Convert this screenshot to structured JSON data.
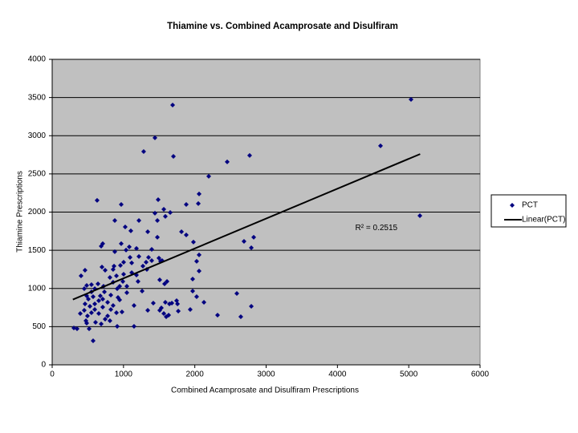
{
  "chart_data": {
    "type": "scatter",
    "title": "Thiamine vs. Combined Acamprosate and Disulfiram",
    "x_label": "Combined Acamprosate and Disulfiram Prescriptions",
    "y_label": "Thiamine Prescriptions",
    "xlim": [
      0,
      6000
    ],
    "ylim": [
      0,
      4000
    ],
    "xticks": [
      0,
      1000,
      2000,
      3000,
      4000,
      5000,
      6000
    ],
    "yticks": [
      0,
      500,
      1000,
      1500,
      2000,
      2500,
      3000,
      3500,
      4000
    ],
    "grid": true,
    "legend": "right",
    "plot_background": "#c0c0c0",
    "series": [
      {
        "name": "PCT",
        "color": "#000080",
        "x": [
          5032,
          4604,
          5156,
          1689,
          1441,
          1283,
          1700,
          2769,
          2454,
          2195,
          2060,
          1486,
          630,
          968,
          1880,
          2049,
          1565,
          1655,
          1441,
          1587,
          1475,
          1216,
          878,
          1024,
          1813,
          1340,
          1880,
          1103,
          1475,
          1981,
          2826,
          2690,
          2792,
          687,
          709,
          968,
          1081,
          1036,
          878,
          1182,
          1396,
          2060,
          1216,
          1092,
          1351,
          1497,
          1396,
          1520,
          1317,
          2026,
          1542,
          1115,
          1002,
          957,
          867,
          698,
          1272,
          2060,
          1328,
          743,
          855,
          1115,
          1002,
          1182,
          901,
          405,
          461,
          810,
          1508,
          1970,
          1610,
          1204,
          991,
          855,
          551,
          642,
          484,
          1047,
          946,
          720,
          912,
          597,
          450,
          1576,
          1261,
          732,
          1970,
          2589,
          551,
          1047,
          822,
          675,
          574,
          484,
          2026,
          923,
          507,
          709,
          946,
          653,
          1745,
          777,
          1587,
          2128,
          461,
          597,
          1644,
          1678,
          855,
          1418,
          1757,
          529,
          1148,
          709,
          1531,
          2792,
          1340,
          1508,
          1768,
          822,
          597,
          450,
          551,
          979,
          901,
          653,
          1936,
          1565,
          1633,
          394,
          495,
          777,
          1599,
          2319,
          2645,
          743,
          473,
          810,
          608,
          484,
          912,
          1148,
          518,
          304,
          349,
          574,
          687
        ],
        "values": [
          3475,
          2867,
          1953,
          3402,
          2972,
          2793,
          2730,
          2741,
          2657,
          2468,
          2237,
          2163,
          2153,
          2100,
          2100,
          2111,
          2037,
          1995,
          1985,
          1943,
          1890,
          1890,
          1890,
          1806,
          1743,
          1743,
          1701,
          1754,
          1670,
          1607,
          1670,
          1617,
          1533,
          1554,
          1586,
          1586,
          1544,
          1502,
          1481,
          1523,
          1512,
          1439,
          1418,
          1407,
          1407,
          1397,
          1365,
          1355,
          1344,
          1355,
          1365,
          1334,
          1344,
          1302,
          1292,
          1281,
          1292,
          1229,
          1250,
          1239,
          1250,
          1208,
          1187,
          1176,
          1166,
          1166,
          1239,
          1145,
          1113,
          1124,
          1092,
          1092,
          1092,
          1082,
          1050,
          1061,
          1040,
          1029,
          1029,
          1029,
          998,
          998,
          998,
          1061,
          966,
          956,
          966,
          935,
          956,
          945,
          914,
          903,
          893,
          903,
          893,
          882,
          861,
          861,
          851,
          840,
          840,
          819,
          819,
          819,
          798,
          798,
          798,
          809,
          777,
          809,
          798,
          767,
          777,
          756,
          746,
          767,
          714,
          714,
          704,
          725,
          725,
          714,
          683,
          693,
          683,
          672,
          725,
          672,
          651,
          672,
          641,
          641,
          630,
          651,
          630,
          599,
          578,
          578,
          557,
          546,
          504,
          504,
          473,
          483,
          473,
          315,
          536
        ]
      }
    ],
    "trendline": {
      "name": "Linear(PCT)",
      "color": "#000000",
      "x": [
        290,
        5160
      ],
      "values": [
        855,
        2760
      ]
    },
    "annotation": {
      "text": "R² = 0.2515",
      "x": 4250,
      "y": 1790
    }
  }
}
